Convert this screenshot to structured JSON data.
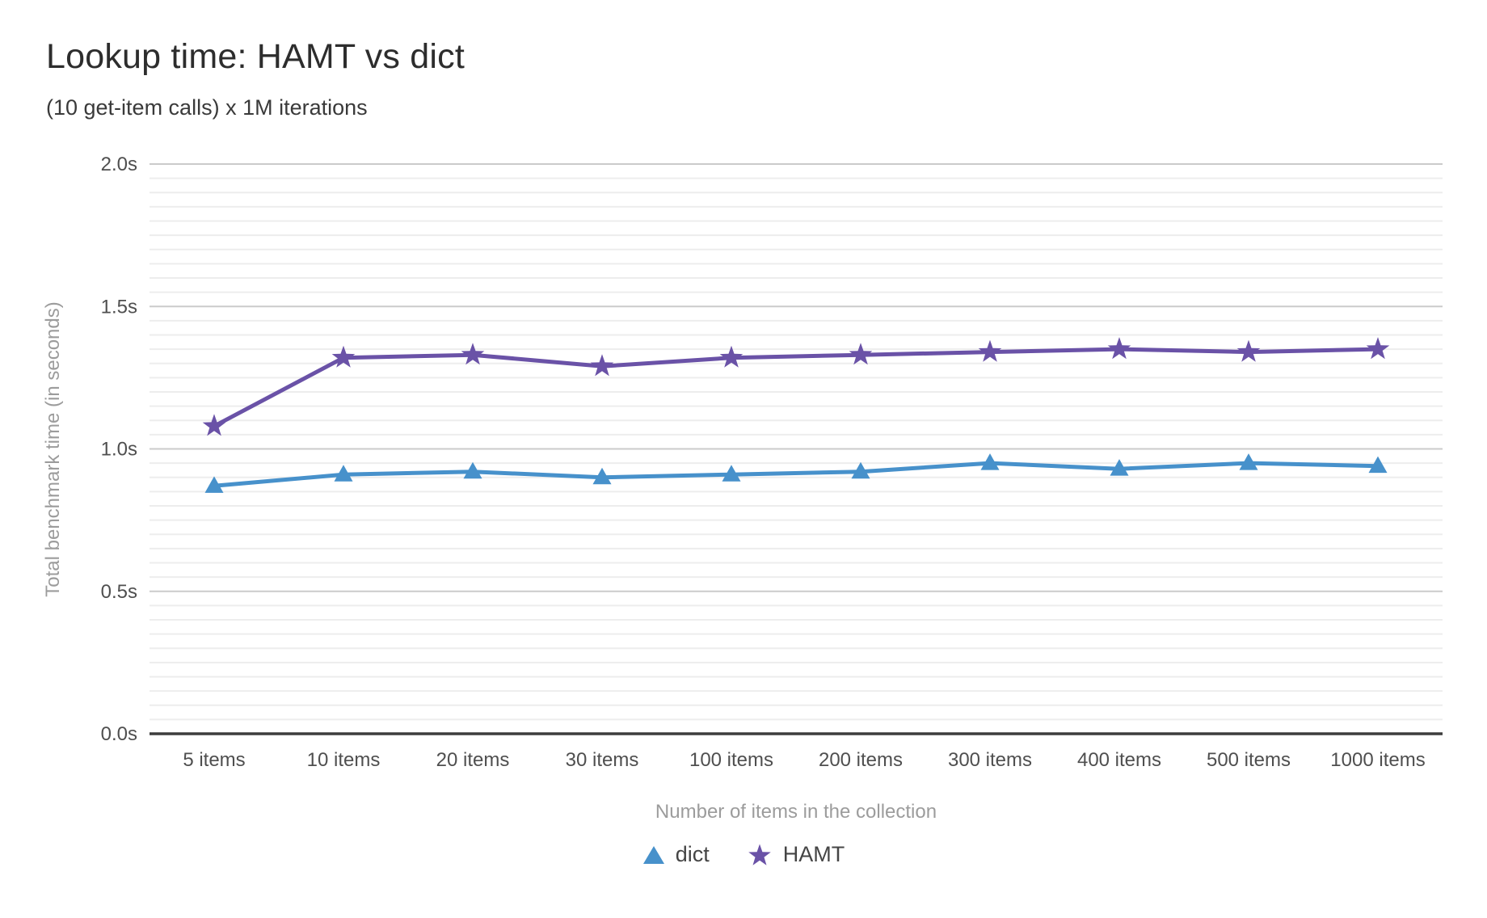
{
  "header": {
    "title": "Lookup time: HAMT vs dict",
    "subtitle": "(10 get-item calls) x 1M iterations"
  },
  "chart_data": {
    "type": "line",
    "title": "Lookup time: HAMT vs dict",
    "subtitle": "(10 get-item calls) x 1M iterations",
    "xlabel": "Number of items in the collection",
    "ylabel": "Total benchmark time (in seconds)",
    "categories": [
      "5 items",
      "10 items",
      "20 items",
      "30 items",
      "100 items",
      "200 items",
      "300 items",
      "400 items",
      "500 items",
      "1000 items"
    ],
    "series": [
      {
        "name": "dict",
        "marker": "triangle",
        "color": "#4791cb",
        "values": [
          0.87,
          0.91,
          0.92,
          0.9,
          0.91,
          0.92,
          0.95,
          0.93,
          0.95,
          0.94
        ]
      },
      {
        "name": "HAMT",
        "marker": "star",
        "color": "#6a52a7",
        "values": [
          1.08,
          1.32,
          1.33,
          1.29,
          1.32,
          1.33,
          1.34,
          1.35,
          1.34,
          1.35
        ]
      }
    ],
    "yticks": [
      {
        "value": 0.0,
        "label": "0.0s"
      },
      {
        "value": 0.5,
        "label": "0.5s"
      },
      {
        "value": 1.0,
        "label": "1.0s"
      },
      {
        "value": 1.5,
        "label": "1.5s"
      },
      {
        "value": 2.0,
        "label": "2.0s"
      }
    ],
    "ylim": [
      0,
      2.0
    ],
    "minor_grid_step": 0.05,
    "grid": true,
    "legend_position": "bottom",
    "colors": {
      "major_gridline": "#cbcbcb",
      "minor_gridline": "#ededed",
      "axis_line": "#3d3d3d",
      "tick_label": "#4f4f4f",
      "axis_title": "#9c9c9c"
    }
  }
}
